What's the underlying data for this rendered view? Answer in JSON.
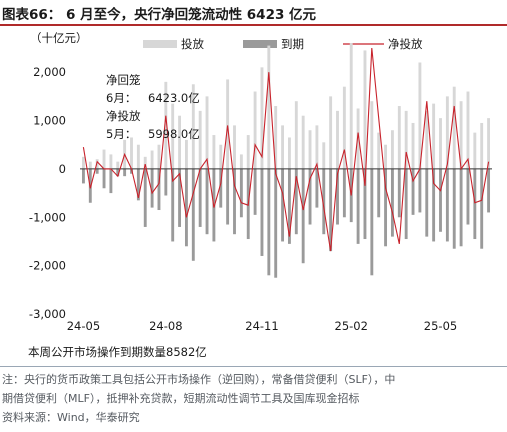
{
  "title": "图表66： 6 月至今，央行净回笼流动性 6423 亿元",
  "chart_data": {
    "type": "bar",
    "unit_label": "（十亿元）",
    "y_ticks": [
      "2,000",
      "1,000",
      "0",
      "-1,000",
      "-2,000",
      "-3,000"
    ],
    "y_tick_values": [
      2000,
      1000,
      0,
      -1000,
      -2000,
      -3000
    ],
    "ylim": [
      -3000,
      2500
    ],
    "x_tick_labels": [
      "24-05",
      "24-08",
      "24-11",
      "25-02",
      "25-05"
    ],
    "x_tick_positions": [
      0,
      12,
      26,
      39,
      52
    ],
    "legend": [
      "投放",
      "到期",
      "净投放"
    ],
    "colors": {
      "issuance": "#d7d7d7",
      "maturity": "#9a9a9a",
      "net": "#c8232c"
    },
    "grid": false,
    "legend_position": "top",
    "issuance": [
      250,
      150,
      200,
      400,
      300,
      150,
      600,
      650,
      500,
      250,
      380,
      500,
      1800,
      1350,
      1100,
      600,
      1750,
      1200,
      1500,
      700,
      500,
      1850,
      900,
      300,
      700,
      1600,
      2100,
      2550,
      1300,
      900,
      650,
      1400,
      1100,
      800,
      900,
      550,
      1500,
      1200,
      1700,
      2600,
      1250,
      2450,
      1400,
      750,
      500,
      800,
      1300,
      1200,
      950,
      2200,
      1200,
      1350,
      1050,
      1500,
      1700,
      1400,
      1600,
      750,
      950,
      1050
    ],
    "maturity": [
      -300,
      -700,
      -100,
      -400,
      -500,
      -150,
      -150,
      -100,
      -650,
      -1200,
      -800,
      -850,
      -550,
      -1500,
      -1200,
      -1600,
      -1900,
      -1200,
      -1350,
      -1500,
      -800,
      -1150,
      -1350,
      -1000,
      -1450,
      -950,
      -1800,
      -2200,
      -2250,
      -1500,
      -1550,
      -1350,
      -1950,
      -1150,
      -800,
      -1350,
      -1700,
      -1150,
      -1000,
      -1100,
      -1550,
      -1450,
      -2200,
      -1000,
      -1600,
      -1400,
      -1000,
      -1450,
      -950,
      -900,
      -1400,
      -1500,
      -1300,
      -1500,
      -1650,
      -1600,
      -1150,
      -1450,
      -1650,
      -900
    ],
    "net": [
      450,
      -400,
      150,
      0,
      0,
      -150,
      300,
      0,
      -600,
      100,
      -500,
      -300,
      1100,
      -250,
      -100,
      -1000,
      -500,
      0,
      200,
      -800,
      -300,
      900,
      -350,
      -700,
      -750,
      500,
      250,
      2000,
      -100,
      -500,
      -1400,
      -150,
      -850,
      -200,
      100,
      -800,
      -1700,
      -100,
      400,
      -550,
      750,
      -350,
      2500,
      1050,
      -400,
      -900,
      -1550,
      350,
      -250,
      0,
      1400,
      -300,
      -450,
      100,
      1300,
      0,
      200,
      -700,
      -650,
      150
    ],
    "annotation": {
      "line1": "净回笼",
      "line2_label": "6月：",
      "line2_value": "6423.0亿",
      "line3": "净投放",
      "line4_label": "5月：",
      "line4_value": "5998.0亿"
    },
    "bottom_note": "本周公开市场操作到期数量8582亿"
  },
  "footnote": {
    "line1": "注：央行的货币政策工具包括公开市场操作（逆回购），常备借贷便利（SLF），中",
    "line2": "期借贷便利（MLF），抵押补充贷款，短期流动性调节工具及国库现金招标"
  },
  "source": "资料来源：Wind，华泰研究"
}
